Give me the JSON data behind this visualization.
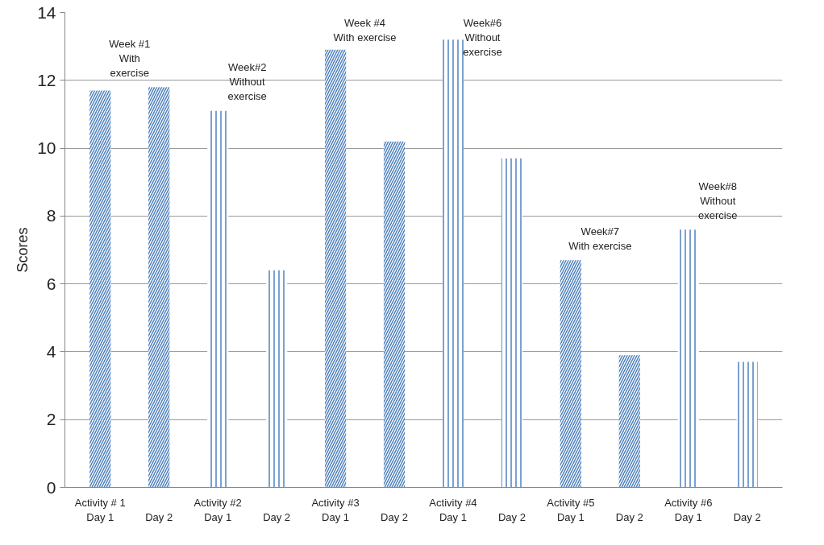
{
  "chart_data": {
    "type": "bar",
    "ylabel": "Scores",
    "categories": [
      "Activity # 1\nDay 1",
      "Day 2",
      "Activity #2\nDay 1",
      "Day 2",
      "Activity #3\nDay 1",
      "Day 2",
      "Activity #4\nDay 1",
      "Day 2",
      "Activity #5\nDay 1",
      "Day 2",
      "Activity #6\nDay 1",
      "Day 2"
    ],
    "series": [
      {
        "color": "#4f81bd",
        "values": [
          11.7,
          11.8,
          null,
          null,
          12.9,
          10.2,
          null,
          null,
          6.7,
          3.9,
          null,
          null
        ]
      },
      {
        "color": "#4f81bd",
        "values": [
          null,
          null,
          11.1,
          6.4,
          null,
          null,
          13.2,
          9.7,
          null,
          null,
          7.6,
          3.7
        ]
      }
    ],
    "annotations": [
      "Week #1\nWith\nexercise",
      "Week#2\nWithout\nexercise",
      "Week #4\nWith exercise",
      "Week#6\nWithout\nexercise",
      "Week#7\nWith exercise",
      "Week#8\nWithout\nexercise"
    ],
    "ylim": [
      0,
      14
    ],
    "yticks": [
      0,
      2,
      4,
      6,
      8,
      10,
      12,
      14
    ],
    "grid": "y"
  }
}
